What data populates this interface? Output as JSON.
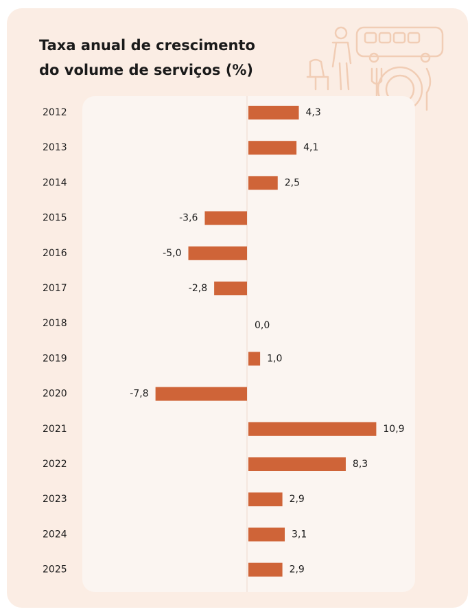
{
  "chart_data": {
    "type": "bar",
    "orientation": "horizontal",
    "title": [
      "Taxa anual de crescimento",
      "do volume de serviços (%)"
    ],
    "categories": [
      "2012",
      "2013",
      "2014",
      "2015",
      "2016",
      "2017",
      "2018",
      "2019",
      "2020",
      "2021",
      "2022",
      "2023",
      "2024",
      "2025"
    ],
    "values": [
      4.3,
      4.1,
      2.5,
      -3.6,
      -5.0,
      -2.8,
      0.0,
      1.0,
      -7.8,
      10.9,
      8.3,
      2.9,
      3.1,
      2.9
    ],
    "value_labels": [
      "4,3",
      "4,1",
      "2,5",
      "-3,6",
      "-5,0",
      "-2,8",
      "0,0",
      "1,0",
      "-7,8",
      "10,9",
      "8,3",
      "2,9",
      "3,1",
      "2,9"
    ],
    "color": "#cf6438"
  }
}
